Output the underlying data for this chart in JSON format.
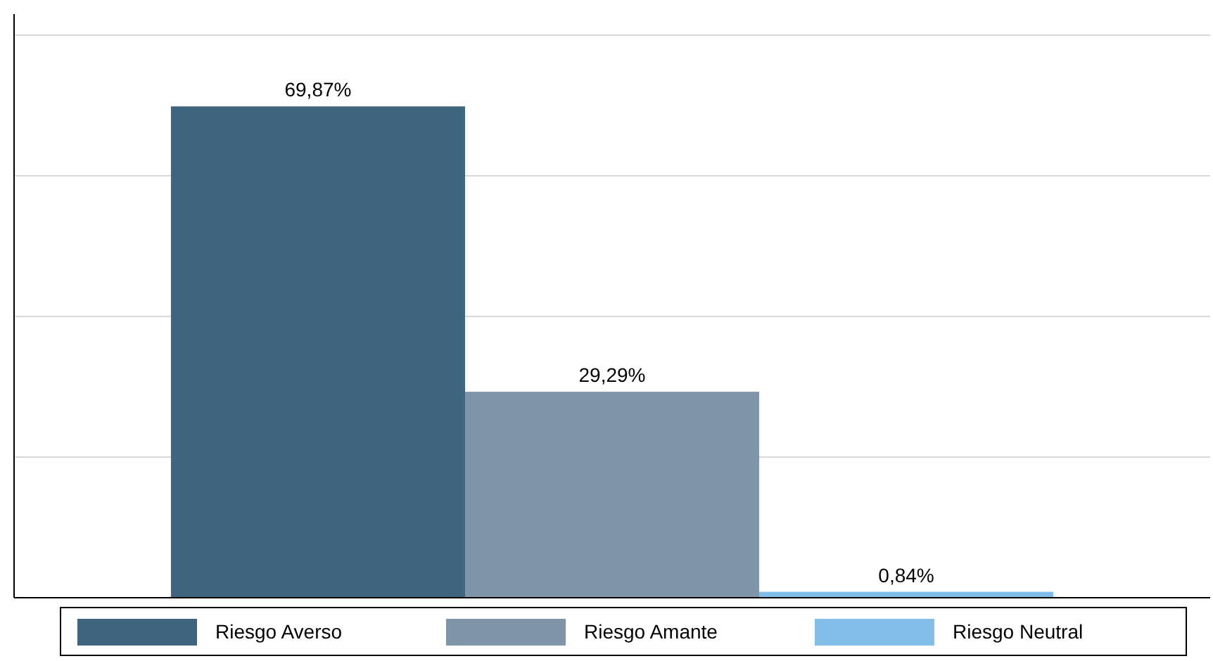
{
  "chart_data": {
    "type": "bar",
    "categories": [
      null
    ],
    "series": [
      {
        "name": "Riesgo Averso",
        "color": "#3f6580",
        "values": [
          69.87
        ],
        "value_labels": [
          "69,87%"
        ]
      },
      {
        "name": "Riesgo Amante",
        "color": "#7f95aa",
        "values": [
          29.29
        ],
        "value_labels": [
          "29,29%"
        ]
      },
      {
        "name": "Riesgo Neutral",
        "color": "#80bde8",
        "values": [
          0.84
        ],
        "value_labels": [
          "0,84%"
        ]
      }
    ],
    "ylim": [
      0,
      83
    ],
    "yticks": [
      {
        "value": 0,
        "label": null
      },
      {
        "value": 20,
        "label": null
      },
      {
        "value": 40,
        "label": null
      },
      {
        "value": 60,
        "label": null
      },
      {
        "value": 80,
        "label": null
      }
    ],
    "grid": "y",
    "legend": "bottom"
  }
}
